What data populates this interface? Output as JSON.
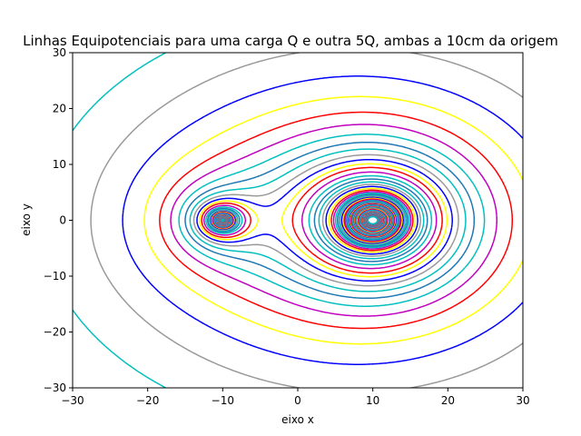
{
  "chart_data": {
    "type": "contour",
    "title": "Linhas Equipotenciais para uma carga Q e outra 5Q, ambas a 10cm da origem",
    "xlabel": "eixo x",
    "ylabel": "eixo y",
    "xlim": [
      -30,
      30
    ],
    "ylim": [
      -30,
      30
    ],
    "x_ticks": [
      -30,
      -20,
      -10,
      0,
      10,
      20,
      30
    ],
    "y_ticks": [
      -30,
      -20,
      -10,
      0,
      10,
      20,
      30
    ],
    "x_tick_labels": [
      "−30",
      "−20",
      "−10",
      "0",
      "10",
      "20",
      "30"
    ],
    "y_tick_labels": [
      "−30",
      "−20",
      "−10",
      "0",
      "10",
      "20",
      "30"
    ],
    "charges": [
      {
        "label": "Q",
        "x": -10,
        "y": 0,
        "q": 1
      },
      {
        "label": "5Q",
        "x": 10,
        "y": 0,
        "q": 5
      }
    ],
    "color_cycle": [
      "#1f77b4",
      "#00bfbf",
      "#999999",
      "#0000ff",
      "#ffff00",
      "#ff0000",
      "#bf00bf",
      "#00bfbf"
    ],
    "grid": false,
    "legend": "none"
  }
}
